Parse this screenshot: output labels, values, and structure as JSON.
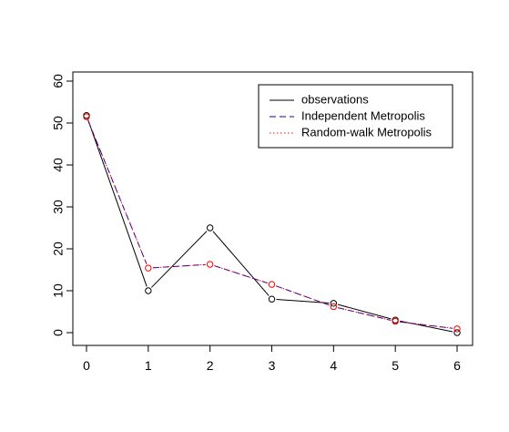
{
  "chart_data": {
    "type": "line",
    "x": [
      0,
      1,
      2,
      3,
      4,
      5,
      6
    ],
    "xlim": [
      0,
      6
    ],
    "ylim": [
      0,
      60
    ],
    "xticks": [
      0,
      1,
      2,
      3,
      4,
      5,
      6
    ],
    "yticks": [
      0,
      10,
      20,
      30,
      40,
      50,
      60
    ],
    "xtick_labels": [
      "0",
      "1",
      "2",
      "3",
      "4",
      "5",
      "6"
    ],
    "ytick_labels": [
      "0",
      "10",
      "20",
      "30",
      "40",
      "50",
      "60"
    ],
    "legend_position": "top-right",
    "series": [
      {
        "name": "observations",
        "values": [
          51.8,
          10.0,
          25.0,
          8.0,
          7.0,
          3.0,
          0.0
        ],
        "line": "solid",
        "color": "#000000",
        "point_color": "#000000"
      },
      {
        "name": "Independent Metropolis",
        "values": [
          51.5,
          15.4,
          16.3,
          11.5,
          6.2,
          2.7,
          0.9
        ],
        "line": "dashed",
        "color": "#0000cc",
        "point_color": null
      },
      {
        "name": "Random-walk Metropolis",
        "values": [
          51.5,
          15.4,
          16.3,
          11.5,
          6.2,
          2.7,
          0.9
        ],
        "line": "dotted",
        "color": "#ff0000",
        "point_color": "#ff0000"
      }
    ]
  }
}
